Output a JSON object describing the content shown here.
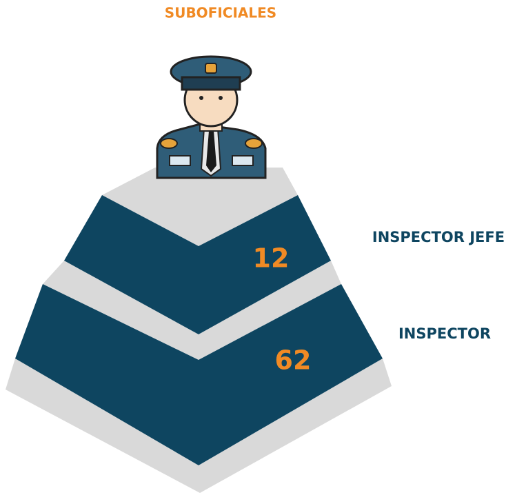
{
  "title": "SUBOFICIALES",
  "levels": [
    {
      "label": "INSPECTOR JEFE",
      "value": "12"
    },
    {
      "label": "INSPECTOR",
      "value": "62"
    }
  ]
}
